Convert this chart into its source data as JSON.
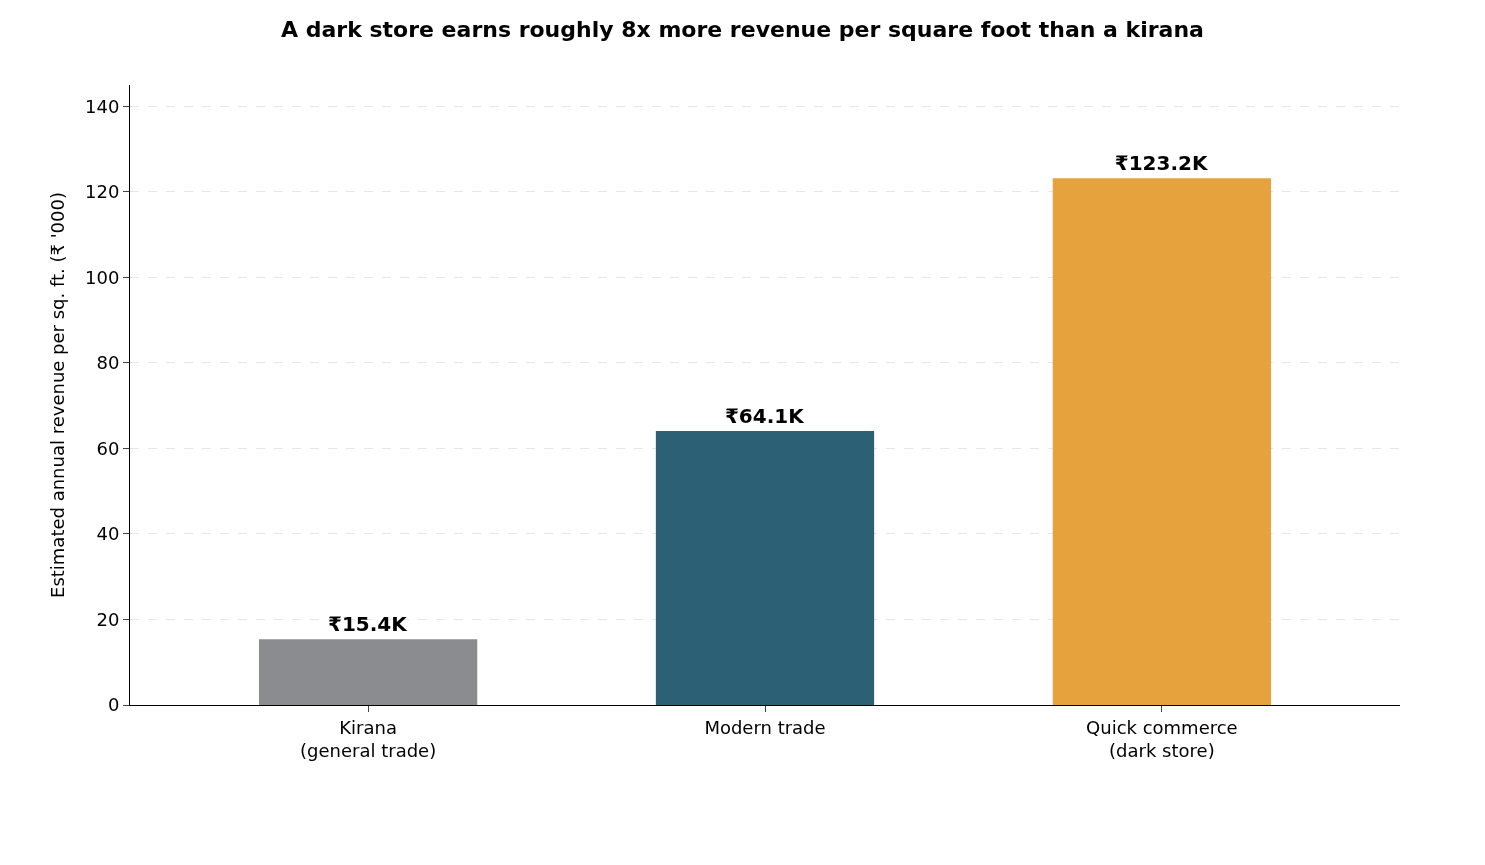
{
  "chart_data": {
    "type": "bar",
    "title": "A dark store earns roughly 8x more revenue per square foot than a kirana",
    "ylabel": "Estimated annual revenue per sq. ft. (₹ '000)",
    "categories": [
      "Kirana\n(general trade)",
      "Modern trade",
      "Quick commerce\n(dark store)"
    ],
    "values": [
      15.4,
      64.1,
      123.2
    ],
    "colors": [
      "#8a8c8f",
      "#2b6075",
      "#e6a33d"
    ],
    "value_labels": [
      "₹15.4K",
      "₹64.1K",
      "₹123.2K"
    ],
    "ylim": [
      0,
      145
    ],
    "yticks": [
      0,
      20,
      40,
      60,
      80,
      100,
      120,
      140
    ],
    "grid": "y"
  }
}
